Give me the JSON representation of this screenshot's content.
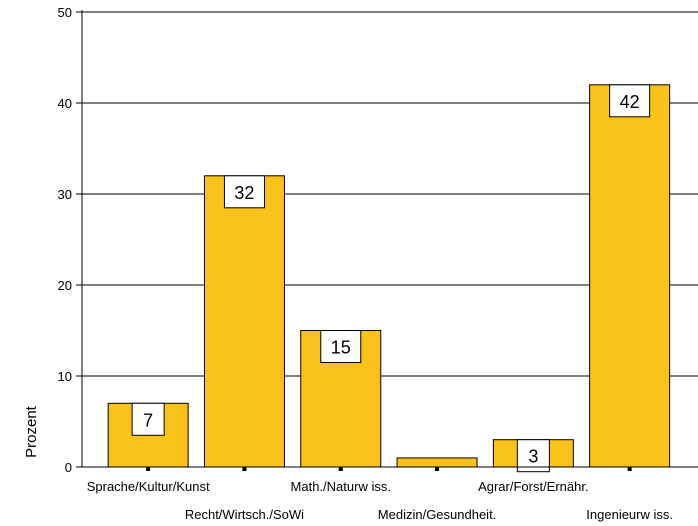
{
  "chart_data": {
    "type": "bar",
    "categories": [
      "Sprache/Kultur/Kunst",
      "Recht/Wirtsch./SoWi",
      "Math./Naturw iss.",
      "Medizin/Gesundheit.",
      "Agrar/Forst/Ernähr.",
      "Ingenieurw iss."
    ],
    "values": [
      7,
      32,
      15,
      1,
      3,
      42
    ],
    "data_labels": [
      "7",
      "32",
      "15",
      "",
      "3",
      "42"
    ],
    "title": "",
    "xlabel": "",
    "ylabel": "Prozent",
    "ylim": [
      0,
      50
    ],
    "yticks": [
      0,
      10,
      20,
      30,
      40,
      50
    ],
    "grid": true,
    "bar_color": "#F9C21A",
    "bar_edge_color": "#000000"
  }
}
